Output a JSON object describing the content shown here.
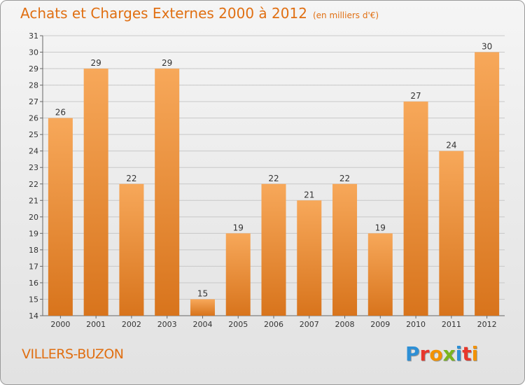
{
  "header": {
    "title": "Achats et Charges Externes 2000 à 2012",
    "unit": "(en milliers d'€)"
  },
  "footer": {
    "town": "VILLERS-BUZON",
    "logo_letters": [
      "P",
      "r",
      "o",
      "x",
      "i",
      "t",
      "i"
    ],
    "logo_colors": [
      "#2d8fd5",
      "#e8362b",
      "#f39200",
      "#7ab51d",
      "#2d8fd5",
      "#e8362b",
      "#f39200"
    ]
  },
  "colors": {
    "accent": "#e06f12",
    "bar_light": "#f7a85a",
    "bar_dark": "#d8741c",
    "grid": "#c8c8c8"
  },
  "chart_data": {
    "type": "bar",
    "title": "Achats et Charges Externes 2000 à 2012",
    "subtitle": "(en milliers d'€)",
    "categories": [
      "2000",
      "2001",
      "2002",
      "2003",
      "2004",
      "2005",
      "2006",
      "2007",
      "2008",
      "2009",
      "2010",
      "2011",
      "2012"
    ],
    "values": [
      26,
      29,
      22,
      29,
      15,
      19,
      22,
      21,
      22,
      19,
      27,
      24,
      30
    ],
    "ylim": [
      14,
      31
    ],
    "yticks": [
      14,
      15,
      16,
      17,
      18,
      19,
      20,
      21,
      22,
      23,
      24,
      25,
      26,
      27,
      28,
      29,
      30,
      31
    ],
    "grid": true,
    "data_labels": true
  }
}
